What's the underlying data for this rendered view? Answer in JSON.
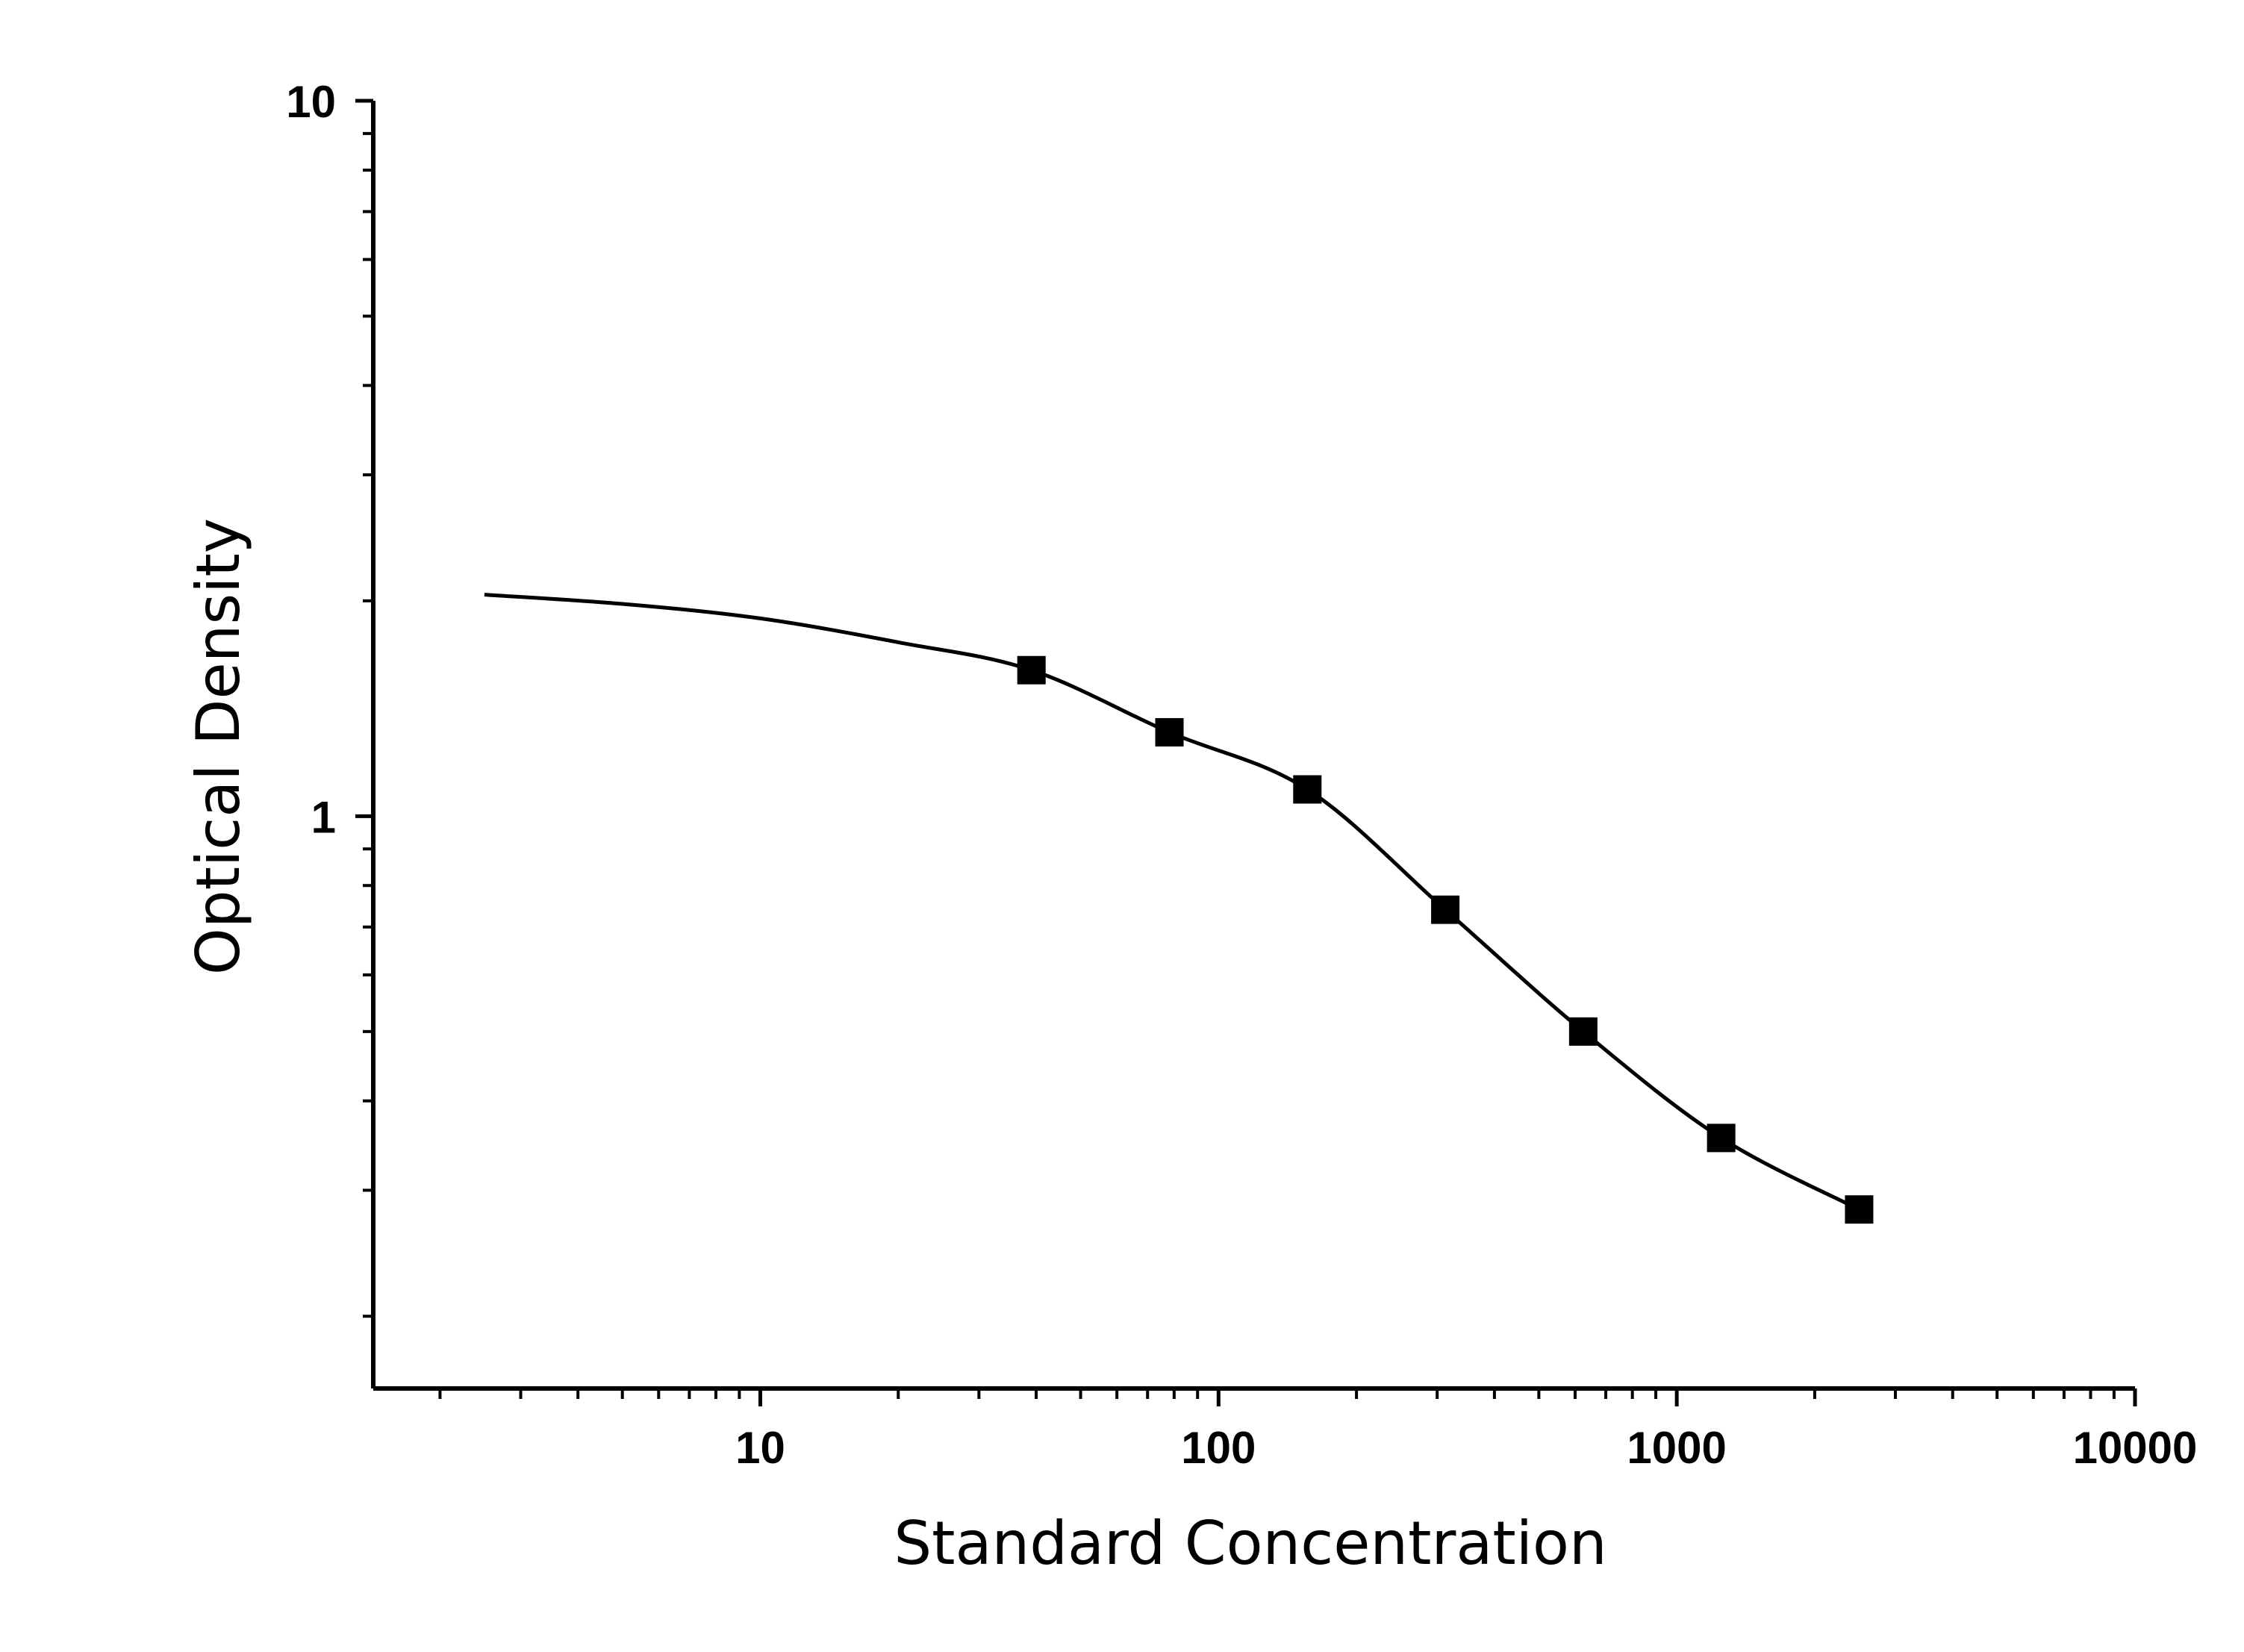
{
  "chart_data": {
    "type": "scatter",
    "xlabel": "Standard Concentration",
    "ylabel": "Optical Density",
    "x_scale": "log",
    "y_scale": "log",
    "xlim": [
      1.43,
      10000
    ],
    "ylim": [
      0.1585,
      10
    ],
    "x_ticks": [
      10,
      100,
      1000,
      10000
    ],
    "x_tick_labels": [
      "10",
      "100",
      "1000",
      "10000"
    ],
    "y_ticks": [
      1,
      10
    ],
    "y_tick_labels": [
      "1",
      "10"
    ],
    "grid": false,
    "legend": "none",
    "marker": "square",
    "color": "#000000",
    "series": [
      {
        "x": [
          39.06,
          78.13,
          156.25,
          312.5,
          625,
          1250,
          2500
        ],
        "y": [
          1.6,
          1.31,
          1.09,
          0.74,
          0.5,
          0.355,
          0.282
        ]
      }
    ],
    "fit_curve": {
      "model": "4PL",
      "x_range": [
        2.5,
        2500
      ],
      "points": [
        [
          2.5,
          2.04
        ],
        [
          5,
          1.98
        ],
        [
          10,
          1.89
        ],
        [
          20,
          1.75
        ],
        [
          39.06,
          1.6
        ],
        [
          78.13,
          1.31
        ],
        [
          156.25,
          1.09
        ],
        [
          312.5,
          0.74
        ],
        [
          625,
          0.5
        ],
        [
          1250,
          0.355
        ],
        [
          2500,
          0.282
        ]
      ]
    }
  }
}
